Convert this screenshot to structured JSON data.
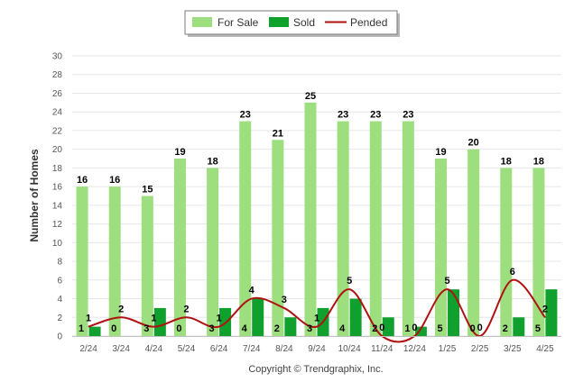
{
  "chart_data": {
    "type": "bar",
    "ylabel": "Number of Homes",
    "xlabel": "",
    "ylim": [
      0,
      30
    ],
    "yticks": [
      0,
      2,
      4,
      6,
      8,
      10,
      12,
      14,
      16,
      18,
      20,
      22,
      24,
      26,
      28,
      30
    ],
    "grid": true,
    "legend_position": "top-center",
    "categories": [
      "2/24",
      "3/24",
      "4/24",
      "5/24",
      "6/24",
      "7/24",
      "8/24",
      "9/24",
      "10/24",
      "11/24",
      "12/24",
      "1/25",
      "2/25",
      "3/25",
      "4/25"
    ],
    "series": [
      {
        "name": "For Sale",
        "type": "bar",
        "color": "#9ddf7f",
        "values": [
          16,
          16,
          15,
          19,
          18,
          23,
          21,
          25,
          23,
          23,
          23,
          19,
          20,
          18,
          18
        ]
      },
      {
        "name": "Sold",
        "type": "bar",
        "color": "#0fa02d",
        "values": [
          1,
          0,
          3,
          0,
          3,
          4,
          2,
          3,
          4,
          2,
          1,
          5,
          0,
          2,
          5
        ]
      },
      {
        "name": "Pended",
        "type": "line",
        "color": "#b01111",
        "values": [
          1,
          2,
          1,
          2,
          1,
          4,
          3,
          1,
          5,
          0,
          0,
          5,
          0,
          6,
          2
        ]
      }
    ]
  },
  "credit": "Copyright © Trendgraphix, Inc."
}
